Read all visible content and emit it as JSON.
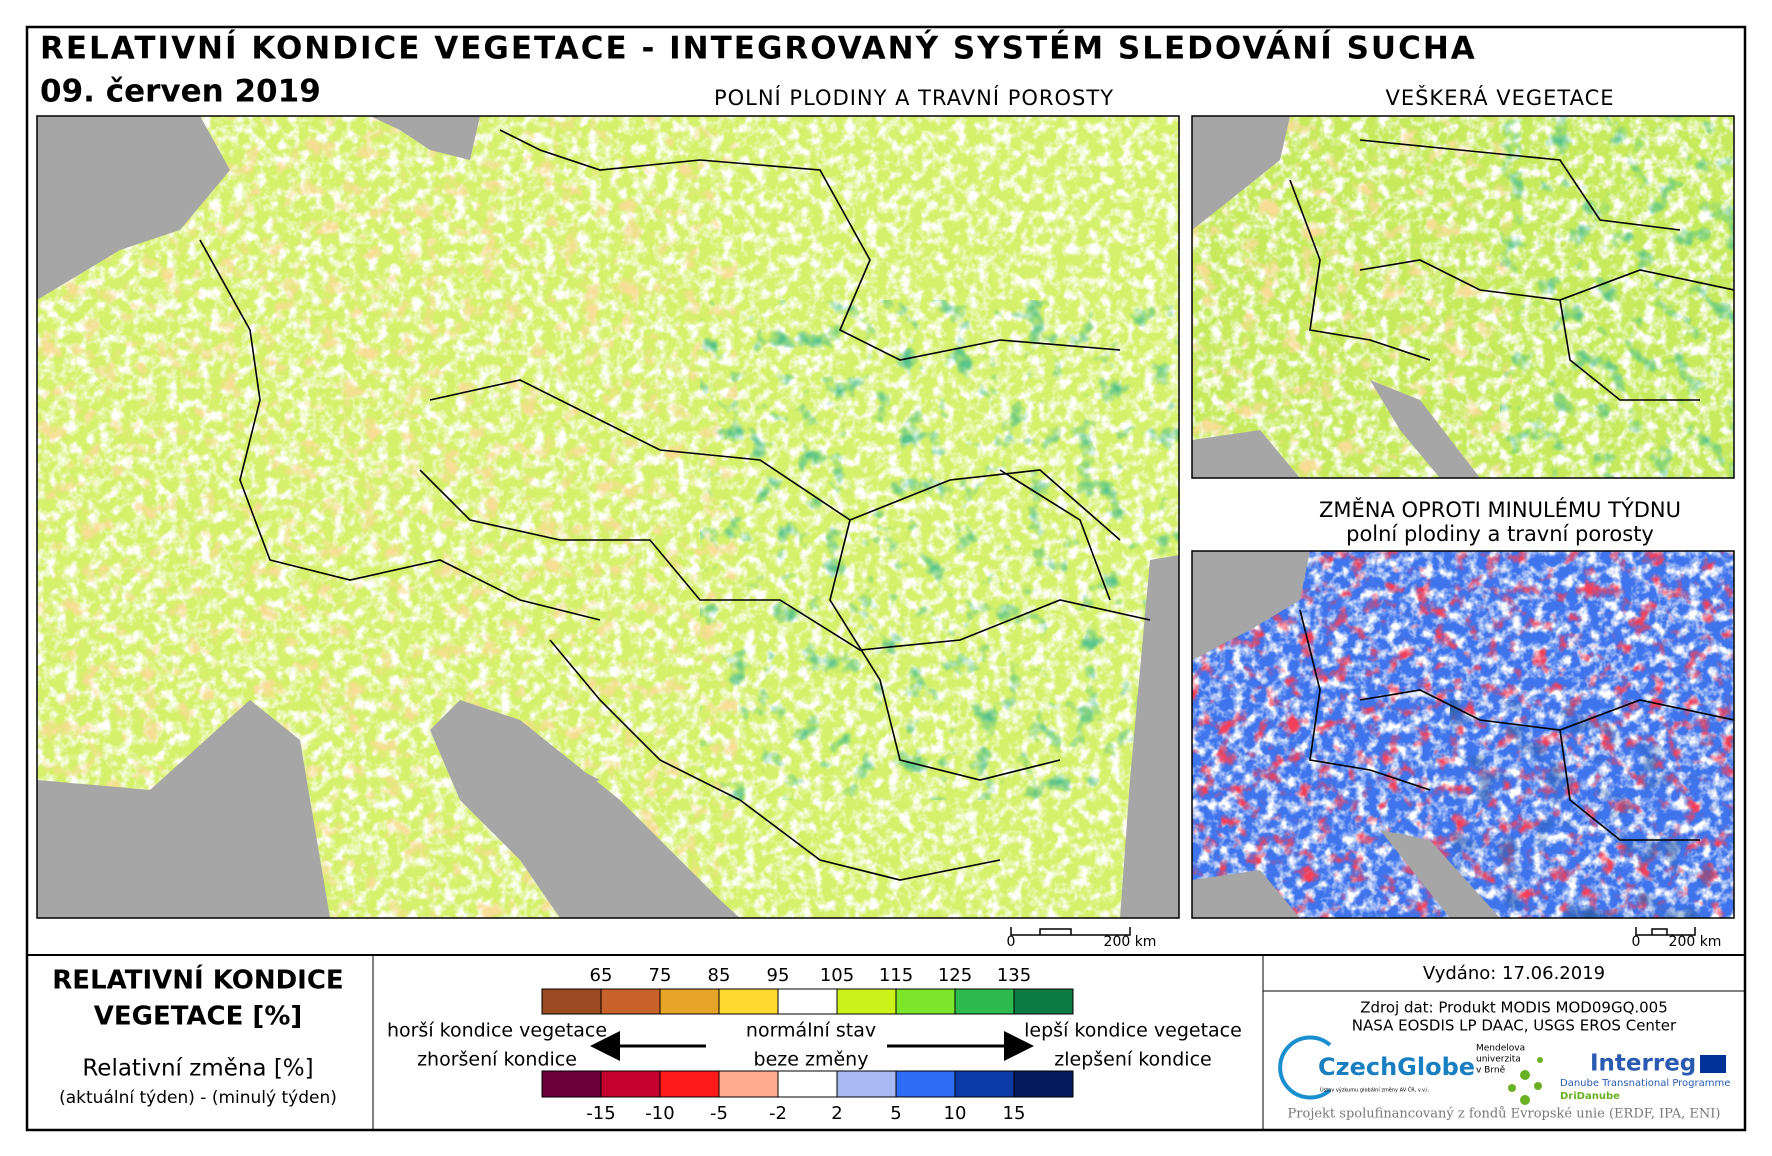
{
  "header": {
    "title": "RELATIVNÍ KONDICE VEGETACE - INTEGROVANÝ SYSTÉM SLEDOVÁNÍ SUCHA",
    "date": "09. červen 2019"
  },
  "maps": [
    {
      "title": "POLNÍ PLODINY A TRAVNÍ POROSTY",
      "scale_start": "0",
      "scale_end": "200 km"
    },
    {
      "title": "VEŠKERÁ VEGETACE"
    },
    {
      "title": "ZMĚNA OPROTI MINULÉMU TÝDNU",
      "subtitle": "polní plodiny a travní porosty",
      "scale_start": "0",
      "scale_end": "200 km"
    }
  ],
  "legend": {
    "title_lines": [
      "RELATIVNÍ KONDICE",
      "VEGETACE [%]"
    ],
    "change_title": "Relativní změna [%]",
    "change_formula": "(aktuální týden) - (minulý týden)",
    "condition_scale": {
      "ticks": [
        65,
        75,
        85,
        95,
        105,
        115,
        125,
        135
      ],
      "colors": [
        "#9b4a22",
        "#c8622a",
        "#e6a526",
        "#ffd930",
        "#ffffff",
        "#ccf21a",
        "#7ee62a",
        "#2dba4e",
        "#0b7a45"
      ]
    },
    "change_scale": {
      "ticks": [
        -15,
        -10,
        -5,
        -2,
        2,
        5,
        10,
        15
      ],
      "colors": [
        "#6b0038",
        "#c4002e",
        "#ff1a1a",
        "#ffab8f",
        "#ffffff",
        "#a8b8f0",
        "#2e6cf5",
        "#0a3aa8",
        "#051a5c"
      ]
    },
    "labels": {
      "worse": "horší kondice vegetace",
      "normal": "normální stav",
      "better": "lepší kondice vegetace",
      "worsening": "zhoršení kondice",
      "no_change": "beze změny",
      "improvement": "zlepšení kondice"
    }
  },
  "footer": {
    "issued": "Vydáno: 17.06.2019",
    "source": [
      "Zdroj dat: Produkt MODIS MOD09GQ.005",
      "NASA EOSDIS LP DAAC, USGS EROS Center"
    ],
    "logos": {
      "czechglobe": "CzechGlobe",
      "czechglobe_sub": "Ústav výzkumu globální změny AV ČR, v.v.i.",
      "mendel": [
        "Mendelova",
        "univerzita",
        "v Brně"
      ],
      "interreg": "Interreg",
      "programme": "Danube Transnational Programme",
      "project": "DriDanube"
    },
    "cofinancing": "Projekt spolufinancovaný z fondů Evropské unie (ERDF, IPA, ENI)"
  }
}
